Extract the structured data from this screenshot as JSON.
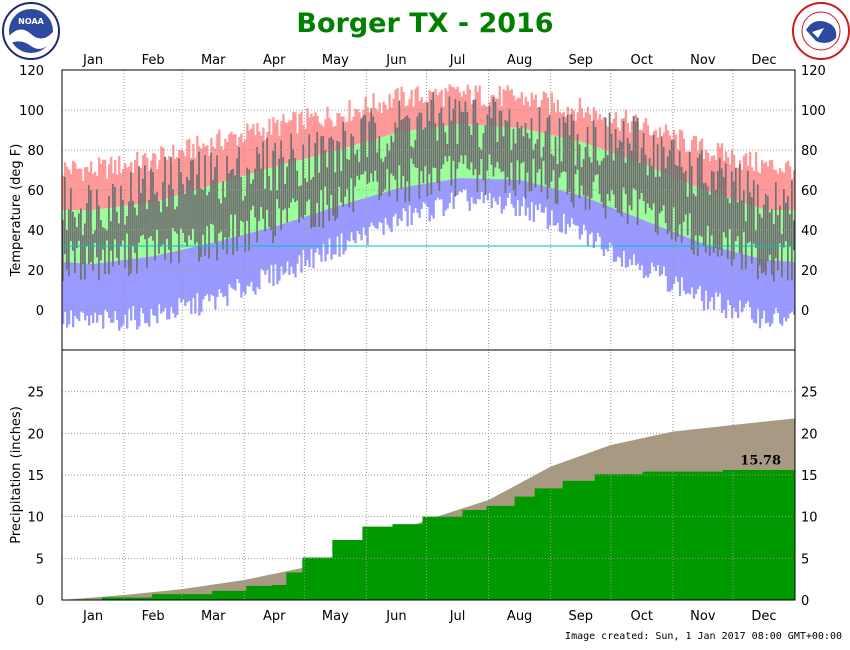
{
  "title": "Borger TX - 2016",
  "footer": "Image created: Sun, 1 Jan 2017 08:00 GMT+00:00",
  "logos": {
    "left": "noaa-logo",
    "right": "national-weather-service-logo",
    "right_text": "NATIONAL WEATHER SERVICE"
  },
  "colors": {
    "title": "#008000",
    "record": "#ff9999",
    "normal": "#99ff99",
    "observed": "#707070",
    "low_record": "#9999ff",
    "precip_observed": "#009900",
    "precip_normal": "#a89a82",
    "freezing": "#00c0c0",
    "grid": "#999999"
  },
  "chart_data": [
    {
      "type": "bar",
      "panel": "temperature",
      "ylabel": "Temperature (deg F)",
      "ylim": [
        -20,
        120
      ],
      "yticks": [
        "120",
        "100",
        "80",
        "60",
        "40",
        "20",
        "0"
      ],
      "months": [
        "Jan",
        "Feb",
        "Mar",
        "Apr",
        "May",
        "Jun",
        "Jul",
        "Aug",
        "Sep",
        "Oct",
        "Nov",
        "Dec"
      ],
      "freezing_line": 32,
      "series": [
        {
          "key": "record_high",
          "values": [
            70,
            75,
            84,
            92,
            98,
            106,
            108,
            106,
            100,
            92,
            80,
            72
          ]
        },
        {
          "key": "normal_high",
          "values": [
            50,
            54,
            63,
            72,
            80,
            89,
            93,
            91,
            84,
            73,
            60,
            50
          ]
        },
        {
          "key": "normal_low",
          "values": [
            23,
            27,
            34,
            42,
            52,
            61,
            66,
            65,
            57,
            45,
            33,
            25
          ]
        },
        {
          "key": "record_low",
          "values": [
            -6,
            -3,
            5,
            18,
            32,
            45,
            55,
            52,
            38,
            22,
            5,
            -4
          ]
        },
        {
          "key": "observed_high",
          "values": [
            52,
            62,
            66,
            74,
            80,
            92,
            96,
            90,
            86,
            82,
            66,
            52
          ]
        },
        {
          "key": "observed_low",
          "values": [
            25,
            30,
            35,
            45,
            54,
            64,
            68,
            67,
            60,
            48,
            36,
            24
          ]
        }
      ]
    },
    {
      "type": "area",
      "panel": "precipitation",
      "ylabel": "Precipitation (inches)",
      "ylim": [
        0,
        30
      ],
      "yticks": [
        "25",
        "20",
        "15",
        "10",
        "5",
        "0"
      ],
      "months": [
        "Jan",
        "Feb",
        "Mar",
        "Apr",
        "May",
        "Jun",
        "Jul",
        "Aug",
        "Sep",
        "Oct",
        "Nov",
        "Dec"
      ],
      "annotation": "15.78",
      "series": [
        {
          "key": "normal_cumulative",
          "x": [
            0,
            31,
            60,
            91,
            121,
            152,
            182,
            213,
            244,
            274,
            305,
            335,
            366
          ],
          "values": [
            0,
            0.6,
            1.3,
            2.4,
            3.9,
            6.7,
            9.6,
            12.0,
            16.0,
            18.6,
            20.2,
            21.0,
            21.8
          ]
        },
        {
          "key": "observed_cumulative",
          "x": [
            0,
            20,
            45,
            75,
            92,
            105,
            112,
            120,
            135,
            150,
            165,
            180,
            200,
            212,
            226,
            236,
            250,
            266,
            290,
            330,
            366
          ],
          "values": [
            0,
            0.3,
            0.7,
            1.1,
            1.7,
            1.8,
            3.3,
            5.1,
            7.2,
            8.8,
            9.1,
            10.0,
            10.8,
            11.3,
            12.4,
            13.4,
            14.3,
            15.1,
            15.4,
            15.6,
            15.78
          ]
        }
      ]
    }
  ]
}
